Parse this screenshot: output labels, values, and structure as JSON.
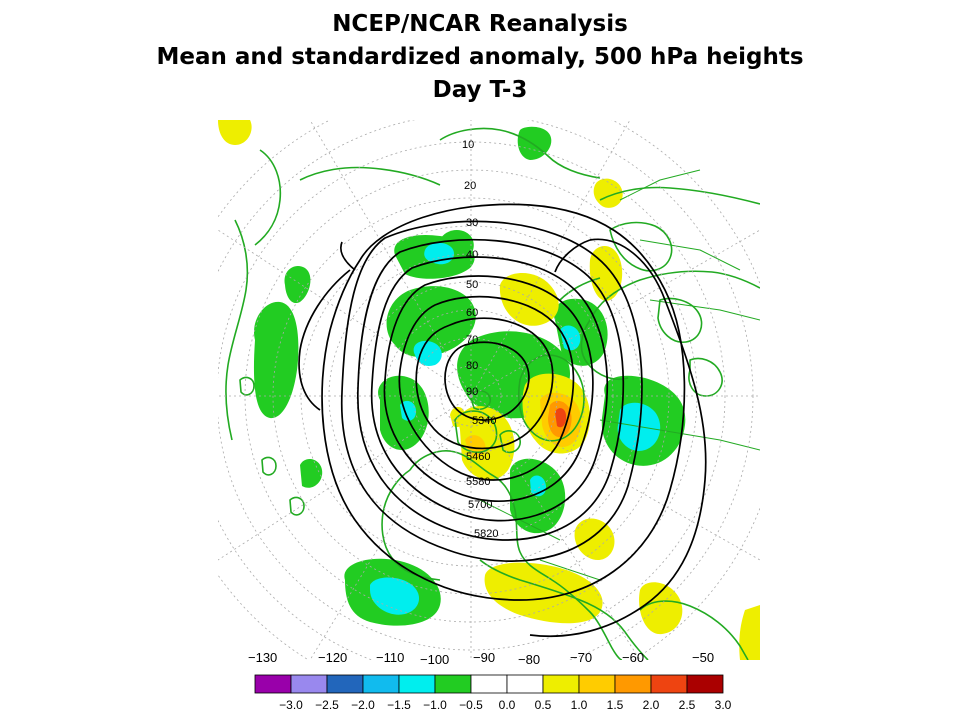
{
  "title": {
    "line1": "NCEP/NCAR Reanalysis",
    "line2": "Mean and standardized anomaly, 500 hPa heights",
    "line3": "Day T-3"
  },
  "map": {
    "projection": "polar-stereographic",
    "latitude_labels": [
      "10",
      "20",
      "30",
      "40",
      "50",
      "60",
      "70",
      "80",
      "90"
    ],
    "longitude_labels": [
      "−130",
      "−120",
      "−110",
      "−100",
      "−90",
      "−80",
      "−70",
      "−60",
      "−50"
    ],
    "contour_labels": [
      "5340",
      "5460",
      "5580",
      "5700",
      "5820"
    ],
    "colors": {
      "land_outline": "#22aa22",
      "contour": "#000000"
    }
  },
  "colorbar": {
    "tick_labels": [
      "−3.0",
      "−2.5",
      "−2.0",
      "−1.5",
      "−1.0",
      "−0.5",
      "0.0",
      "0.5",
      "1.0",
      "1.5",
      "2.0",
      "2.5",
      "3.0"
    ],
    "colors": [
      "#9900aa",
      "#9988ee",
      "#2266bb",
      "#11bbee",
      "#00eeee",
      "#22cc22",
      "#ffffff",
      "#ffffff",
      "#eeee00",
      "#ffcc00",
      "#ff9900",
      "#ee4411",
      "#aa0000"
    ]
  }
}
